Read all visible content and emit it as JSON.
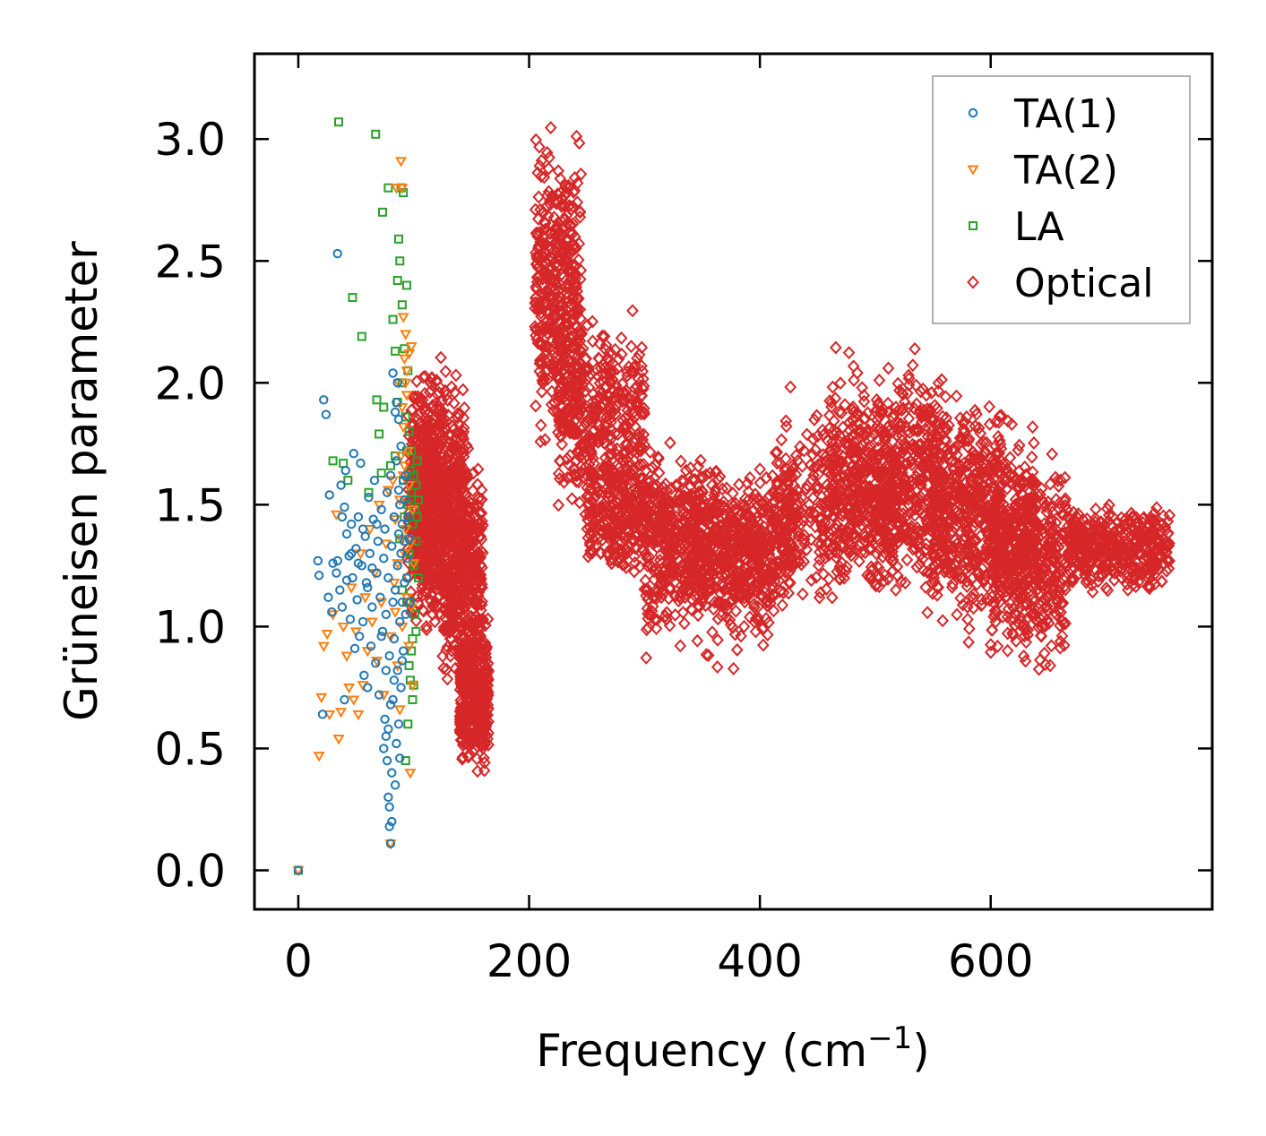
{
  "chart_data": {
    "type": "scatter",
    "title": "",
    "xlabel": "Frequency (cm",
    "xlabel_superscript": "−1",
    "xlabel_suffix": ")",
    "ylabel": "Grüneisen parameter",
    "xlim": [
      -38,
      792
    ],
    "ylim": [
      -0.16,
      3.35
    ],
    "xticks": [
      0,
      200,
      400,
      600
    ],
    "xtick_labels": [
      "0",
      "200",
      "400",
      "600"
    ],
    "yticks": [
      0.0,
      0.5,
      1.0,
      1.5,
      2.0,
      2.5,
      3.0
    ],
    "ytick_labels": [
      "0.0",
      "0.5",
      "1.0",
      "1.5",
      "2.0",
      "2.5",
      "3.0"
    ],
    "grid": false,
    "legend_position": "top-right",
    "series": [
      {
        "name": "TA(1)",
        "color": "#1f77b4",
        "marker": "circle",
        "points": [
          [
            0,
            0.0
          ],
          [
            17,
            1.27
          ],
          [
            18,
            1.21
          ],
          [
            21,
            0.64
          ],
          [
            22,
            1.93
          ],
          [
            24,
            1.87
          ],
          [
            27,
            1.54
          ],
          [
            29,
            1.06
          ],
          [
            33,
            1.22
          ],
          [
            34,
            2.53
          ],
          [
            34,
            1.27
          ],
          [
            36,
            1.15
          ],
          [
            37,
            1.58
          ],
          [
            38,
            1.08
          ],
          [
            40,
            0.7
          ],
          [
            40,
            1.49
          ],
          [
            41,
            1.64
          ],
          [
            42,
            1.38
          ],
          [
            44,
            1.29
          ],
          [
            45,
            1.03
          ],
          [
            46,
            1.42
          ],
          [
            47,
            1.2
          ],
          [
            48,
            1.71
          ],
          [
            49,
            0.91
          ],
          [
            50,
            1.32
          ],
          [
            51,
            1.11
          ],
          [
            52,
            1.45
          ],
          [
            53,
            0.96
          ],
          [
            54,
            1.67
          ],
          [
            55,
            1.25
          ],
          [
            56,
            1.02
          ],
          [
            57,
            0.8
          ],
          [
            58,
            1.37
          ],
          [
            59,
            1.18
          ],
          [
            60,
            0.75
          ],
          [
            61,
            1.53
          ],
          [
            62,
            1.3
          ],
          [
            63,
            0.92
          ],
          [
            64,
            1.08
          ],
          [
            65,
            1.44
          ],
          [
            66,
            1.6
          ],
          [
            67,
            0.85
          ],
          [
            68,
            1.22
          ],
          [
            69,
            1.35
          ],
          [
            70,
            0.72
          ],
          [
            71,
            1.12
          ],
          [
            72,
            1.48
          ],
          [
            73,
            0.98
          ],
          [
            74,
            1.28
          ],
          [
            75,
            0.62
          ],
          [
            75,
            1.4
          ],
          [
            76,
            0.55
          ],
          [
            76,
            1.05
          ],
          [
            77,
            0.45
          ],
          [
            77,
            1.55
          ],
          [
            78,
            0.3
          ],
          [
            78,
            1.2
          ],
          [
            79,
            0.18
          ],
          [
            79,
            0.88
          ],
          [
            80,
            0.11
          ],
          [
            80,
            1.62
          ],
          [
            81,
            0.4
          ],
          [
            81,
            1.33
          ],
          [
            82,
            0.7
          ],
          [
            82,
            2.04
          ],
          [
            83,
            0.95
          ],
          [
            83,
            1.45
          ],
          [
            84,
            0.35
          ],
          [
            84,
            1.15
          ],
          [
            85,
            1.68
          ],
          [
            85,
            0.52
          ],
          [
            86,
            1.25
          ],
          [
            86,
            0.82
          ],
          [
            87,
            1.38
          ],
          [
            87,
            0.6
          ],
          [
            88,
            1.02
          ],
          [
            88,
            1.5
          ],
          [
            89,
            0.75
          ],
          [
            89,
            1.3
          ],
          [
            90,
            1.1
          ],
          [
            90,
            1.42
          ],
          [
            91,
            0.9
          ],
          [
            91,
            1.6
          ],
          [
            92,
            1.18
          ],
          [
            92,
            1.35
          ],
          [
            93,
            1.05
          ],
          [
            94,
            1.28
          ],
          [
            95,
            1.45
          ],
          [
            74,
            0.5
          ],
          [
            79,
            0.26
          ],
          [
            81,
            0.2
          ],
          [
            83,
            0.78
          ],
          [
            85,
            1.92
          ],
          [
            86,
            2.0
          ],
          [
            87,
            1.85
          ],
          [
            80,
            0.68
          ],
          [
            78,
            0.58
          ],
          [
            82,
            1.1
          ],
          [
            84,
            1.88
          ],
          [
            76,
            0.82
          ],
          [
            72,
            0.96
          ],
          [
            68,
            1.42
          ],
          [
            64,
            1.24
          ],
          [
            60,
            1.16
          ],
          [
            56,
            1.4
          ],
          [
            52,
            1.26
          ],
          [
            46,
            1.3
          ],
          [
            42,
            1.19
          ],
          [
            38,
            1.45
          ],
          [
            30,
            1.26
          ],
          [
            26,
            1.12
          ],
          [
            88,
            0.46
          ],
          [
            90,
            0.86
          ],
          [
            92,
            1.52
          ],
          [
            94,
            1.2
          ],
          [
            96,
            1.36
          ],
          [
            97,
            1.1
          ],
          [
            93,
            1.62
          ],
          [
            89,
            1.74
          ],
          [
            87,
            1.56
          ]
        ]
      },
      {
        "name": "TA(2)",
        "color": "#ff7f0e",
        "marker": "triangle-down",
        "points": [
          [
            0,
            0.0
          ],
          [
            18,
            0.47
          ],
          [
            20,
            0.71
          ],
          [
            22,
            0.92
          ],
          [
            25,
            0.97
          ],
          [
            27,
            0.64
          ],
          [
            30,
            1.05
          ],
          [
            33,
            1.46
          ],
          [
            35,
            0.54
          ],
          [
            37,
            0.65
          ],
          [
            39,
            1.0
          ],
          [
            42,
            0.88
          ],
          [
            44,
            0.75
          ],
          [
            46,
            1.16
          ],
          [
            48,
            0.7
          ],
          [
            50,
            0.98
          ],
          [
            52,
            0.64
          ],
          [
            54,
            1.3
          ],
          [
            56,
            0.76
          ],
          [
            58,
            1.12
          ],
          [
            60,
            0.9
          ],
          [
            62,
            1.4
          ],
          [
            64,
            1.02
          ],
          [
            66,
            1.22
          ],
          [
            68,
            0.86
          ],
          [
            70,
            1.5
          ],
          [
            72,
            1.1
          ],
          [
            74,
            0.72
          ],
          [
            76,
            1.34
          ],
          [
            78,
            1.56
          ],
          [
            80,
            0.11
          ],
          [
            80,
            0.96
          ],
          [
            82,
            1.6
          ],
          [
            83,
            1.18
          ],
          [
            84,
            1.44
          ],
          [
            85,
            2.8
          ],
          [
            86,
            1.26
          ],
          [
            87,
            2.0
          ],
          [
            88,
            1.52
          ],
          [
            89,
            2.91
          ],
          [
            89,
            1.7
          ],
          [
            90,
            2.8
          ],
          [
            90,
            1.9
          ],
          [
            91,
            1.82
          ],
          [
            91,
            2.27
          ],
          [
            92,
            2.1
          ],
          [
            92,
            1.66
          ],
          [
            93,
            2.2
          ],
          [
            93,
            1.4
          ],
          [
            94,
            1.95
          ],
          [
            94,
            2.05
          ],
          [
            95,
            1.72
          ],
          [
            95,
            1.2
          ],
          [
            96,
            1.58
          ],
          [
            96,
            0.92
          ],
          [
            97,
            1.34
          ],
          [
            97,
            0.4
          ],
          [
            98,
            1.08
          ],
          [
            98,
            2.15
          ],
          [
            99,
            0.76
          ],
          [
            99,
            1.48
          ],
          [
            100,
            1.26
          ],
          [
            90,
            1.0
          ],
          [
            88,
            0.66
          ],
          [
            86,
            0.84
          ],
          [
            84,
            1.06
          ],
          [
            92,
            1.3
          ],
          [
            94,
            1.12
          ],
          [
            96,
            2.12
          ],
          [
            93,
            2.0
          ],
          [
            91,
            1.62
          ],
          [
            89,
            1.36
          ]
        ]
      },
      {
        "name": "LA",
        "color": "#2ca02c",
        "marker": "square",
        "points": [
          [
            0,
            0.0
          ],
          [
            30,
            1.68
          ],
          [
            35,
            3.07
          ],
          [
            39,
            1.67
          ],
          [
            43,
            1.6
          ],
          [
            47,
            2.35
          ],
          [
            55,
            2.19
          ],
          [
            61,
            1.55
          ],
          [
            67,
            3.02
          ],
          [
            68,
            1.93
          ],
          [
            70,
            1.79
          ],
          [
            72,
            1.63
          ],
          [
            73,
            2.7
          ],
          [
            74,
            1.9
          ],
          [
            78,
            2.8
          ],
          [
            80,
            1.66
          ],
          [
            82,
            2.26
          ],
          [
            84,
            2.13
          ],
          [
            86,
            2.42
          ],
          [
            87,
            2.59
          ],
          [
            88,
            2.5
          ],
          [
            89,
            2.8
          ],
          [
            90,
            2.32
          ],
          [
            90,
            2.0
          ],
          [
            91,
            2.78
          ],
          [
            91,
            1.6
          ],
          [
            92,
            2.14
          ],
          [
            93,
            1.86
          ],
          [
            94,
            2.4
          ],
          [
            94,
            1.72
          ],
          [
            95,
            1.5
          ],
          [
            95,
            2.05
          ],
          [
            96,
            1.3
          ],
          [
            96,
            1.8
          ],
          [
            97,
            1.1
          ],
          [
            97,
            1.64
          ],
          [
            98,
            0.9
          ],
          [
            98,
            1.55
          ],
          [
            99,
            1.42
          ],
          [
            99,
            0.7
          ],
          [
            100,
            1.25
          ],
          [
            100,
            1.62
          ],
          [
            101,
            1.48
          ],
          [
            101,
            1.05
          ],
          [
            102,
            1.58
          ],
          [
            102,
            1.35
          ],
          [
            103,
            1.68
          ],
          [
            103,
            1.45
          ],
          [
            104,
            1.52
          ],
          [
            104,
            1.2
          ],
          [
            93,
            0.45
          ],
          [
            95,
            0.6
          ],
          [
            97,
            0.78
          ],
          [
            99,
            0.95
          ],
          [
            90,
            1.15
          ],
          [
            88,
            1.36
          ],
          [
            86,
            1.92
          ],
          [
            84,
            1.7
          ],
          [
            92,
            1.45
          ],
          [
            94,
            1.1
          ],
          [
            96,
            0.84
          ],
          [
            98,
            1.72
          ],
          [
            100,
            0.76
          ],
          [
            102,
            0.98
          ]
        ]
      },
      {
        "name": "Optical",
        "color": "#d62728",
        "marker": "diamond",
        "clusters": [
          {
            "fmin": 95,
            "fmax": 125,
            "gmin": 0.9,
            "gmax": 2.15
          },
          {
            "fmin": 105,
            "fmax": 145,
            "gmin": 0.8,
            "gmax": 2.2
          },
          {
            "fmin": 125,
            "fmax": 160,
            "gmin": 0.6,
            "gmax": 1.9
          },
          {
            "fmin": 140,
            "fmax": 165,
            "gmin": 0.36,
            "gmax": 1.1
          },
          {
            "fmin": 205,
            "fmax": 245,
            "gmin": 1.6,
            "gmax": 3.15
          },
          {
            "fmin": 225,
            "fmax": 300,
            "gmin": 1.3,
            "gmax": 2.4
          },
          {
            "fmin": 250,
            "fmax": 350,
            "gmin": 1.1,
            "gmax": 1.8
          },
          {
            "fmin": 300,
            "fmax": 410,
            "gmin": 0.8,
            "gmax": 1.7
          },
          {
            "fmin": 340,
            "fmax": 430,
            "gmin": 0.95,
            "gmax": 1.75
          },
          {
            "fmin": 410,
            "fmax": 520,
            "gmin": 1.0,
            "gmax": 2.0
          },
          {
            "fmin": 460,
            "fmax": 560,
            "gmin": 1.1,
            "gmax": 2.2
          },
          {
            "fmin": 500,
            "fmax": 610,
            "gmin": 1.0,
            "gmax": 2.1
          },
          {
            "fmin": 550,
            "fmax": 640,
            "gmin": 0.9,
            "gmax": 1.95
          },
          {
            "fmin": 600,
            "fmax": 665,
            "gmin": 0.72,
            "gmax": 1.8
          },
          {
            "fmin": 665,
            "fmax": 755,
            "gmin": 1.1,
            "gmax": 1.55
          }
        ]
      }
    ]
  }
}
